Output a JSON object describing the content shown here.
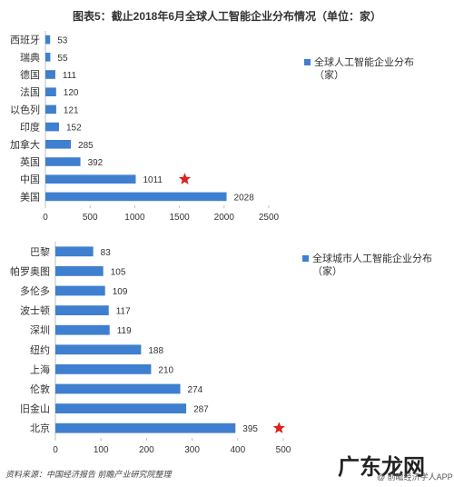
{
  "title": "图表5：截止2018年6月全球人工智能企业分布情况（单位：家）",
  "chart_data": [
    {
      "type": "bar",
      "orientation": "horizontal",
      "categories": [
        "西班牙",
        "瑞典",
        "德国",
        "法国",
        "以色列",
        "印度",
        "加拿大",
        "英国",
        "中国",
        "美国"
      ],
      "series": [
        {
          "name": "全球人工智能企业分布（家）",
          "values": [
            53,
            55,
            111,
            120,
            121,
            152,
            285,
            392,
            1011,
            2028
          ]
        }
      ],
      "xlim": [
        0,
        2500
      ],
      "xticks": [
        0,
        500,
        1000,
        1500,
        2000,
        2500
      ],
      "legend": "right",
      "highlight": "中国",
      "color": "#3f7fcf",
      "star_color": "#e0201c"
    },
    {
      "type": "bar",
      "orientation": "horizontal",
      "categories": [
        "巴黎",
        "帕罗奥图",
        "多伦多",
        "波士顿",
        "深圳",
        "纽约",
        "上海",
        "伦敦",
        "旧金山",
        "北京"
      ],
      "series": [
        {
          "name": "全球城市人工智能企业分布（家）",
          "values": [
            83,
            105,
            109,
            117,
            119,
            188,
            210,
            274,
            287,
            395
          ]
        }
      ],
      "xlim": [
        0,
        500
      ],
      "xticks": [
        0,
        100,
        200,
        300,
        400,
        500
      ],
      "legend": "right",
      "highlight": "北京",
      "color": "#3f7fcf",
      "star_color": "#e0201c"
    }
  ],
  "footer": {
    "source": "资料来源：中国经济报告  前瞻产业研究院整理",
    "brand": "广东龙网",
    "app": "@ 前瞻经济学人APP"
  }
}
